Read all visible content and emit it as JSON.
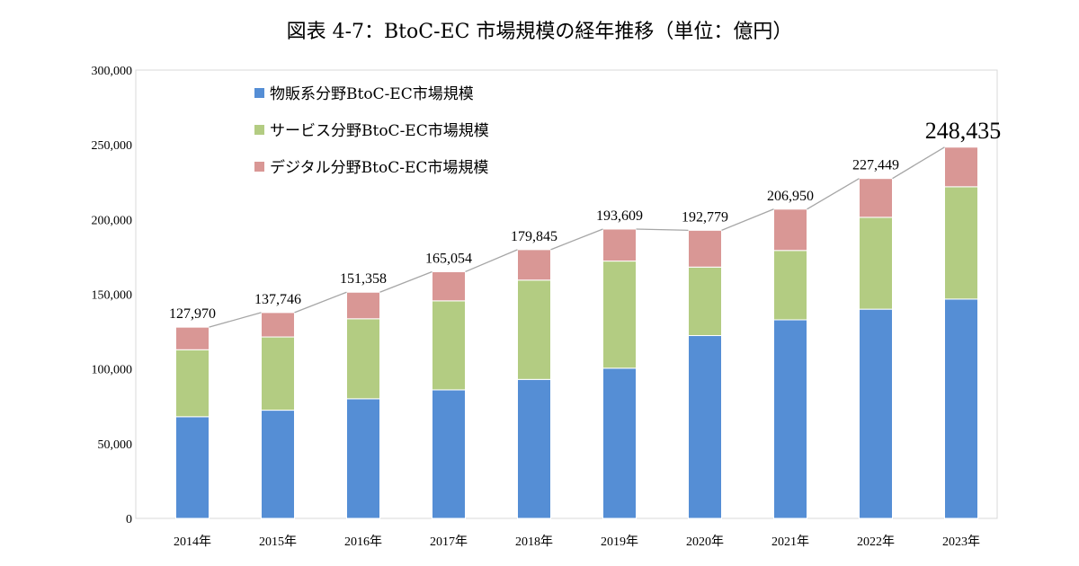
{
  "chart_data": {
    "type": "bar",
    "stacked": true,
    "title": "図表 4-7：BtoC-EC 市場規模の経年推移（単位：億円）",
    "xlabel": "",
    "ylabel": "",
    "ylim": [
      0,
      300000
    ],
    "yticks": [
      0,
      50000,
      100000,
      150000,
      200000,
      250000,
      300000
    ],
    "ytick_labels": [
      "0",
      "50,000",
      "100,000",
      "150,000",
      "200,000",
      "250,000",
      "300,000"
    ],
    "grid": false,
    "legend_position": "top-left",
    "categories": [
      "2014年",
      "2015年",
      "2016年",
      "2017年",
      "2018年",
      "2019年",
      "2020年",
      "2021年",
      "2022年",
      "2023年"
    ],
    "series": [
      {
        "name": "物販系分野BtoC-EC市場規模",
        "color": "#558ed5",
        "values": [
          68043,
          72398,
          80043,
          86008,
          92992,
          100515,
          122333,
          132865,
          139997,
          146760
        ]
      },
      {
        "name": "サービス分野BtoC-EC市場規模",
        "color": "#b3cc82",
        "values": [
          44816,
          49014,
          53532,
          59568,
          66471,
          71672,
          45832,
          46424,
          61477,
          75169
        ]
      },
      {
        "name": "デジタル分野BtoC-EC市場規模",
        "color": "#d99795",
        "values": [
          15111,
          16334,
          17782,
          19478,
          20382,
          21422,
          24614,
          27661,
          25974,
          26506
        ]
      }
    ],
    "totals": [
      127970,
      137746,
      151358,
      165054,
      179845,
      193609,
      192779,
      206950,
      227449,
      248435
    ],
    "total_labels": [
      "127,970",
      "137,746",
      "151,358",
      "165,054",
      "179,845",
      "193,609",
      "192,779",
      "206,950",
      "227,449",
      "248,435"
    ]
  }
}
